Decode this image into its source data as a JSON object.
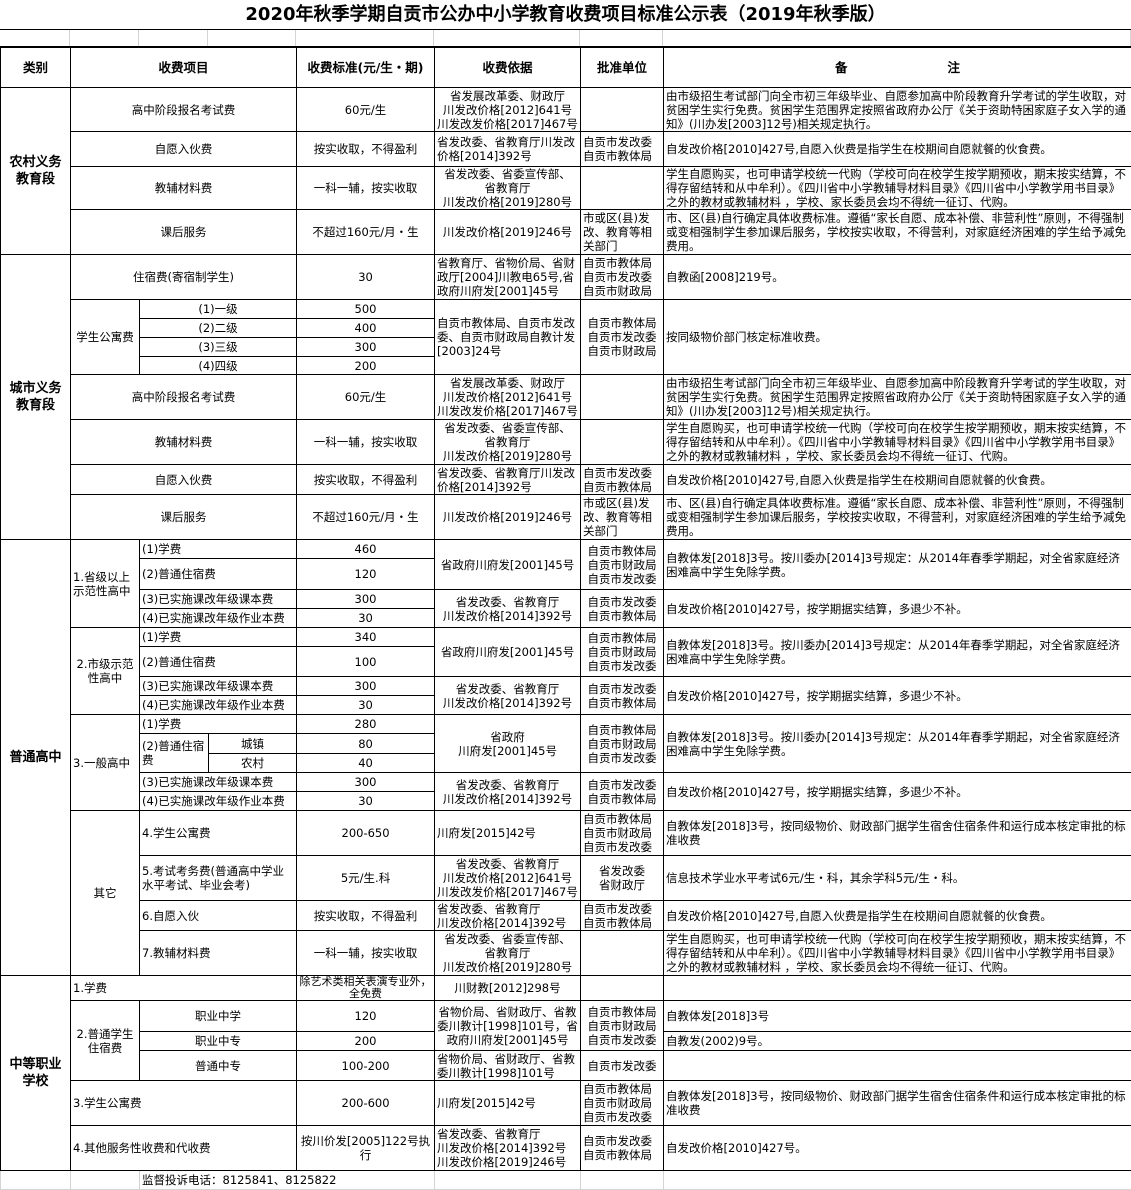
{
  "title": "2020年秋季学期自贡市公办中小学教育收费项目标准公示表（2019年秋季版）",
  "rows": [
    [
      {
        "t": "类别",
        "a": "h"
      },
      {
        "t": "收费项目",
        "c": 3,
        "a": "h"
      },
      {
        "t": "收费标准(元/生・期)",
        "a": "h"
      },
      {
        "t": "收费依据",
        "a": "h"
      },
      {
        "t": "批准单位",
        "a": "h"
      },
      {
        "t": "备　　　　　　　　注",
        "a": "h"
      }
    ],
    [
      {
        "t": "农村义务\n教育段",
        "r": 4,
        "a": "b"
      },
      {
        "t": "高中阶段报名考试费",
        "c": 3
      },
      {
        "t": "60元/生"
      },
      {
        "t": "省发展改革委、财政厅\n川发改价格[2012]641号\n川发改发价格[2017]467号"
      },
      {
        "t": ""
      },
      {
        "t": "由市级招生考试部门向全市初三年级毕业、自愿参加高中阶段教育升学考试的学生收取，对贫困学生实行免费。贫困学生范围界定按照省政府办公厅《关于资助特困家庭子女入学的通知》(川办发[2003]12号)相关规定执行。",
        "a": "l"
      }
    ],
    [
      {
        "t": "自愿入伙费",
        "c": 3
      },
      {
        "t": "按实收取，不得盈利"
      },
      {
        "t": "省发改委、省教育厅川发改价格[2014]392号",
        "a": "l"
      },
      {
        "t": "自贡市发改委\n自贡市教体局",
        "a": "l"
      },
      {
        "t": "自发改价格[2010]427号,自愿入伙费是指学生在校期间自愿就餐的伙食费。",
        "a": "l"
      }
    ],
    [
      {
        "t": "教辅材料费",
        "c": 3
      },
      {
        "t": "一科一辅，按实收取"
      },
      {
        "t": "省发改委、省委宣传部、\n省教育厅\n川发改价格[2019]280号"
      },
      {
        "t": ""
      },
      {
        "t": "学生自愿购买，也可申请学校统一代购（学校可向在校学生按学期预收，期末按实结算，不得存留结转和从中牟利）。《四川省中小学教辅导材料目录》《四川省中小学教学用书目录》之外的教材或教辅材料 ，学校、家长委员会均不得统一征订、代购。",
        "a": "l"
      }
    ],
    [
      {
        "t": "课后服务",
        "c": 3
      },
      {
        "t": "不超过160元/月・生"
      },
      {
        "t": "川发改价格[2019]246号"
      },
      {
        "t": "市或区(县)发改、教育等相关部门",
        "a": "l"
      },
      {
        "t": "市、区(县)自行确定具体收费标准。遵循“家长自愿、成本补偿、非营利性”原则，不得强制或变相强制学生参加课后服务，学校按实收取，不得营利，对家庭经济困难的学生给予减免费用。",
        "a": "l"
      }
    ],
    [
      {
        "t": "城市义务\n教育段",
        "r": 9,
        "a": "b"
      },
      {
        "t": "住宿费(寄宿制学生)",
        "c": 3
      },
      {
        "t": "30"
      },
      {
        "t": "省教育厅、省物价局、省财政厅[2004]川教电65号,省政府川府发[2001]45号",
        "a": "l"
      },
      {
        "t": "自贡市教体局\n自贡市发改委\n自贡市财政局",
        "a": "l"
      },
      {
        "t": "自教函[2008]219号。",
        "a": "l"
      }
    ],
    [
      {
        "t": "学生公寓费",
        "r": 4
      },
      {
        "t": "(1)一级",
        "c": 2
      },
      {
        "t": "500"
      },
      {
        "t": "自贡市教体局、自贡市发改委、自贡市财政局自教计发[2003]24号",
        "r": 4,
        "a": "l"
      },
      {
        "t": "自贡市教体局\n自贡市发改委\n自贡市财政局",
        "r": 4
      },
      {
        "t": "按同级物价部门核定标准收费。",
        "r": 4,
        "a": "l"
      }
    ],
    [
      {
        "t": "(2)二级",
        "c": 2
      },
      {
        "t": "400"
      }
    ],
    [
      {
        "t": "(3)三级",
        "c": 2
      },
      {
        "t": "300"
      }
    ],
    [
      {
        "t": "(4)四级",
        "c": 2
      },
      {
        "t": "200"
      }
    ],
    [
      {
        "t": "高中阶段报名考试费",
        "c": 3
      },
      {
        "t": "60元/生"
      },
      {
        "t": "省发展改革委、财政厅\n川发改价格[2012]641号\n川发改发价格[2017]467号"
      },
      {
        "t": ""
      },
      {
        "t": "由市级招生考试部门向全市初三年级毕业、自愿参加高中阶段教育升学考试的学生收取，对贫困学生实行免费。贫困学生范围界定按照省政府办公厅《关于资助特困家庭子女入学的通知》(川办发[2003]12号)相关规定执行。",
        "a": "l"
      }
    ],
    [
      {
        "t": "教辅材料费",
        "c": 3
      },
      {
        "t": "一科一辅，按实收取"
      },
      {
        "t": "省发改委、省委宣传部、\n省教育厅\n川发改价格[2019]280号"
      },
      {
        "t": ""
      },
      {
        "t": "学生自愿购买，也可申请学校统一代购（学校可向在校学生按学期预收，期末按实结算，不得存留结转和从中牟利）。《四川省中小学教辅导材料目录》《四川省中小学教学用书目录》之外的教材或教辅材料 ，学校、家长委员会均不得统一征订、代购。",
        "a": "l"
      }
    ],
    [
      {
        "t": "自愿入伙费",
        "c": 3
      },
      {
        "t": "按实收取，不得盈利"
      },
      {
        "t": "省发改委、省教育厅川发改价格[2014]392号",
        "a": "l"
      },
      {
        "t": "自贡市发改委\n自贡市教体局",
        "a": "l"
      },
      {
        "t": "自发改价格[2010]427号,自愿入伙费是指学生在校期间自愿就餐的伙食费。",
        "a": "l"
      }
    ],
    [
      {
        "t": "课后服务",
        "c": 3
      },
      {
        "t": "不超过160元/月・生"
      },
      {
        "t": "川发改价格[2019]246号"
      },
      {
        "t": "市或区(县)发改、教育等相关部门",
        "a": "l"
      },
      {
        "t": "市、区(县)自行确定具体收费标准。遵循“家长自愿、成本补偿、非营利性”原则，不得强制或变相强制学生参加课后服务，学校按实收取，不得营利，对家庭经济困难的学生给予减免费用。",
        "a": "l"
      }
    ],
    [
      {
        "t": "普通高中",
        "r": 17,
        "a": "b"
      },
      {
        "t": "1.省级以上示范性高中",
        "r": 4,
        "a": "l"
      },
      {
        "t": "(1)学费",
        "c": 2,
        "a": "l"
      },
      {
        "t": "460"
      },
      {
        "t": "省政府川府发[2001]45号",
        "r": 2
      },
      {
        "t": "自贡市教体局\n自贡市财政局\n自贡市发改委",
        "r": 2
      },
      {
        "t": "自教体发[2018]3号。按川委办[2014]3号规定：从2014年春季学期起，对全省家庭经济困难高中学生免除学费。",
        "r": 2,
        "a": "l"
      }
    ],
    [
      {
        "t": "(2)普通住宿费",
        "c": 2,
        "a": "l"
      },
      {
        "t": "120"
      }
    ],
    [
      {
        "t": "(3)已实施课改年级课本费",
        "c": 2,
        "a": "l"
      },
      {
        "t": "300"
      },
      {
        "t": "省发改委、省教育厅\n川发改价格[2014]392号",
        "r": 2
      },
      {
        "t": "自贡市发改委\n自贡市教体局",
        "r": 2
      },
      {
        "t": "自发改价格[2010]427号，按学期据实结算，多退少不补。",
        "r": 2,
        "a": "l"
      }
    ],
    [
      {
        "t": "(4)已实施课改年级作业本费",
        "c": 2,
        "a": "l"
      },
      {
        "t": "30"
      }
    ],
    [
      {
        "t": "2.市级示范性高中",
        "r": 4
      },
      {
        "t": "(1)学费",
        "c": 2,
        "a": "l"
      },
      {
        "t": "340"
      },
      {
        "t": "省政府川府发[2001]45号",
        "r": 2
      },
      {
        "t": "自贡市教体局\n自贡市财政局\n自贡市发改委",
        "r": 2
      },
      {
        "t": "自教体发[2018]3号。按川委办[2014]3号规定：从2014年春季学期起，对全省家庭经济困难高中学生免除学费。",
        "r": 2,
        "a": "l"
      }
    ],
    [
      {
        "t": "(2)普通住宿费",
        "c": 2,
        "a": "l"
      },
      {
        "t": "100"
      }
    ],
    [
      {
        "t": "(3)已实施课改年级课本费",
        "c": 2,
        "a": "l"
      },
      {
        "t": "300"
      },
      {
        "t": "省发改委、省教育厅\n川发改价格[2014]392号",
        "r": 2
      },
      {
        "t": "自贡市发改委\n自贡市教体局",
        "r": 2
      },
      {
        "t": "自发改价格[2010]427号，按学期据实结算，多退少不补。",
        "r": 2,
        "a": "l"
      }
    ],
    [
      {
        "t": "(4)已实施课改年级作业本费",
        "c": 2,
        "a": "l"
      },
      {
        "t": "30"
      }
    ],
    [
      {
        "t": "3.一般高中",
        "r": 5,
        "a": "l"
      },
      {
        "t": "(1)学费",
        "c": 2,
        "a": "l"
      },
      {
        "t": "280"
      },
      {
        "t": "省政府\n川府发[2001]45号",
        "r": 3
      },
      {
        "t": "自贡市教体局\n自贡市财政局\n自贡市发改委",
        "r": 3
      },
      {
        "t": "自教体发[2018]3号。按川委办[2014]3号规定：从2014年春季学期起，对全省家庭经济困难高中学生免除学费。",
        "r": 3,
        "a": "l"
      }
    ],
    [
      {
        "t": "(2)普通住宿费",
        "r": 2,
        "a": "l"
      },
      {
        "t": "城镇"
      },
      {
        "t": "80"
      }
    ],
    [
      {
        "t": "农村"
      },
      {
        "t": "40"
      }
    ],
    [
      {
        "t": "(3)已实施课改年级课本费",
        "c": 2,
        "a": "l"
      },
      {
        "t": "300"
      },
      {
        "t": "省发改委、省教育厅\n川发改价格[2014]392号",
        "r": 2
      },
      {
        "t": "自贡市发改委\n自贡市教体局",
        "r": 2
      },
      {
        "t": "自发改价格[2010]427号，按学期据实结算，多退少不补。",
        "r": 2,
        "a": "l"
      }
    ],
    [
      {
        "t": "(4)已实施课改年级作业本费",
        "c": 2,
        "a": "l"
      },
      {
        "t": "30"
      }
    ],
    [
      {
        "t": "其它",
        "r": 4
      },
      {
        "t": "4.学生公寓费",
        "c": 2,
        "a": "l"
      },
      {
        "t": "200-650"
      },
      {
        "t": "川府发[2015]42号",
        "a": "l"
      },
      {
        "t": "自贡市教体局\n自贡市财政局\n自贡市发改委",
        "a": "l"
      },
      {
        "t": "自教体发[2018]3号，按同级物价、财政部门据学生宿舍住宿条件和运行成本核定审批的标准收费",
        "a": "l"
      }
    ],
    [
      {
        "t": "5.考试考务费(普通高中学业水平考试、毕业会考)",
        "c": 2,
        "a": "l"
      },
      {
        "t": "5元/生.科"
      },
      {
        "t": "省发改委、省教育厅\n川发改价格[2012]641号\n川发改发价格[2017]467号"
      },
      {
        "t": "省发改委\n省财政厅"
      },
      {
        "t": "信息技术学业水平考试6元/生・科，其余学科5元/生・科。",
        "a": "l"
      }
    ],
    [
      {
        "t": "6.自愿入伙",
        "c": 2,
        "a": "l"
      },
      {
        "t": "按实收取，不得盈利"
      },
      {
        "t": "省发改委、省教育厅\n川发改价格[2014]392号",
        "a": "l"
      },
      {
        "t": "自贡市发改委\n自贡市教体局",
        "a": "l"
      },
      {
        "t": "自发改价格[2010]427号,自愿入伙费是指学生在校期间自愿就餐的伙食费。",
        "a": "l"
      }
    ],
    [
      {
        "t": "7.教辅材料费",
        "c": 2,
        "a": "l"
      },
      {
        "t": "一科一辅，按实收取"
      },
      {
        "t": "省发改委、省委宣传部、\n省教育厅\n川发改价格[2019]280号"
      },
      {
        "t": ""
      },
      {
        "t": "学生自愿购买，也可申请学校统一代购（学校可向在校学生按学期预收，期末按实结算，不得存留结转和从中牟利）。《四川省中小学教辅导材料目录》《四川省中小学教学用书目录》之外的教材或教辅材料 ，学校、家长委员会均不得统一征订、代购。",
        "a": "l"
      }
    ],
    [
      {
        "t": "中等职业\n学校",
        "r": 6,
        "a": "b"
      },
      {
        "t": "1.学费",
        "c": 3,
        "a": "l"
      },
      {
        "t": "除艺术类相关表演专业外，全免费",
        "a": "clip"
      },
      {
        "t": "川财教[2012]298号"
      },
      {
        "t": ""
      },
      {
        "t": ""
      }
    ],
    [
      {
        "t": "2.普通学生住宿费",
        "r": 3
      },
      {
        "t": "职业中学",
        "c": 2
      },
      {
        "t": "120"
      },
      {
        "t": "省物价局、省财政厅、省教委川教计[1998]101号，省政府川府发[2001]45号",
        "r": 2
      },
      {
        "t": "自贡市教体局\n自贡市财政局\n自贡市发改委",
        "r": 2
      },
      {
        "t": "自教体发[2018]3号",
        "a": "l"
      }
    ],
    [
      {
        "t": "职业中专",
        "c": 2
      },
      {
        "t": "200"
      },
      {
        "t": "自教发(2002)9号。",
        "a": "l"
      }
    ],
    [
      {
        "t": "普通中专",
        "c": 2
      },
      {
        "t": "100-200"
      },
      {
        "t": "省物价局、省财政厅、省教委川教计[1998]101号",
        "a": "l"
      },
      {
        "t": "自贡市发改委"
      },
      {
        "t": ""
      }
    ],
    [
      {
        "t": "3.学生公寓费",
        "c": 3,
        "a": "l"
      },
      {
        "t": "200-600"
      },
      {
        "t": "川府发[2015]42号",
        "a": "l"
      },
      {
        "t": "自贡市教体局\n自贡市财政局\n自贡市发改委",
        "a": "l"
      },
      {
        "t": "自教体发[2018]3号，按同级物价、财政部门据学生宿舍住宿条件和运行成本核定审批的标准收费",
        "a": "l"
      }
    ],
    [
      {
        "t": "4.其他服务性收费和代收费",
        "c": 3,
        "a": "l"
      },
      {
        "t": "按川价发[2005]122号执行"
      },
      {
        "t": "省发改委、省教育厅\n川发改价格[2014]392号\n川发改价格[2019]246号",
        "a": "l"
      },
      {
        "t": "自贡市发改委\n自贡市教体局",
        "a": "l"
      },
      {
        "t": "自发改价格[2010]427号。",
        "a": "l"
      }
    ]
  ],
  "footer": {
    "hotline": "监督投诉电话：8125841、8125822"
  }
}
